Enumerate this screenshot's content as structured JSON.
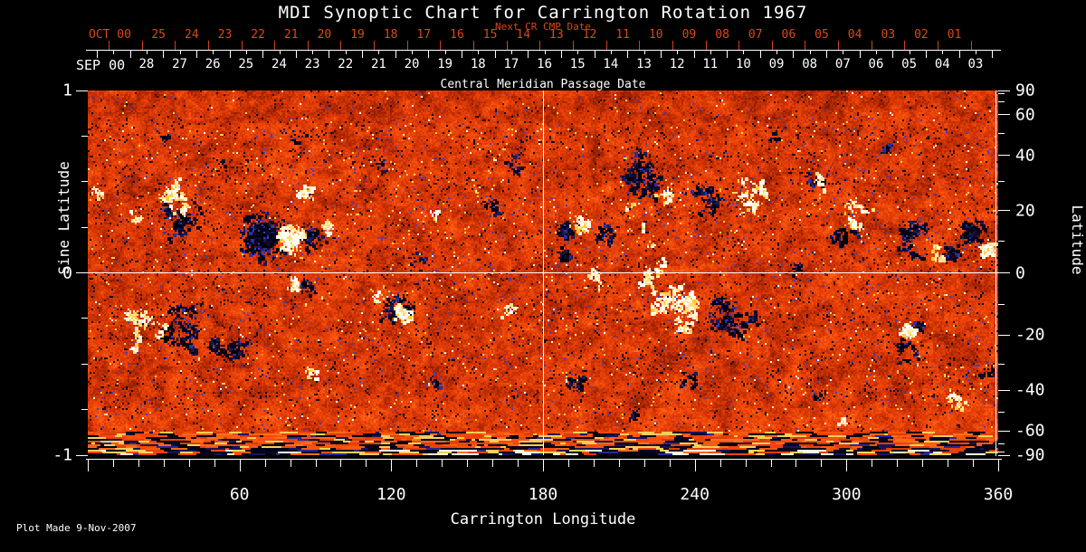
{
  "title": "MDI Synoptic Chart for Carrington Rotation 1967",
  "top_axis": {
    "label": "Next CR CMP Date",
    "month_label": "OCT 00",
    "days": [
      "25",
      "24",
      "23",
      "22",
      "21",
      "20",
      "19",
      "18",
      "17",
      "16",
      "15",
      "14",
      "13",
      "12",
      "11",
      "10",
      "09",
      "08",
      "07",
      "06",
      "05",
      "04",
      "03",
      "02",
      "01"
    ],
    "color": "#d9481c"
  },
  "cmp_axis": {
    "label": "Central Meridian Passage Date",
    "month_label": "SEP 00",
    "days": [
      "28",
      "27",
      "26",
      "25",
      "24",
      "23",
      "22",
      "21",
      "20",
      "19",
      "18",
      "17",
      "16",
      "15",
      "14",
      "13",
      "12",
      "11",
      "10",
      "09",
      "08",
      "07",
      "06",
      "05",
      "04",
      "03"
    ]
  },
  "left_axis": {
    "label": "Sine Latitude",
    "tick_labels": [
      "1",
      "0",
      "-1"
    ],
    "tick_values": [
      1,
      0,
      -1
    ]
  },
  "right_axis": {
    "label": "Latitude",
    "tick_labels": [
      "90",
      "60",
      "40",
      "20",
      "0",
      "-20",
      "-40",
      "-60",
      "-90"
    ],
    "tick_values": [
      90,
      60,
      40,
      20,
      0,
      -20,
      -40,
      -60,
      -90
    ],
    "minor_tick_values": [
      80,
      70,
      50,
      30,
      10,
      -10,
      -30,
      -50,
      -70,
      -80
    ]
  },
  "bottom_axis": {
    "label": "Carrington Longitude",
    "tick_labels": [
      "60",
      "120",
      "180",
      "240",
      "300",
      "360"
    ],
    "tick_values": [
      60,
      120,
      180,
      240,
      300,
      360
    ]
  },
  "footer": "Plot Made  9-Nov-2007",
  "chart_data": {
    "type": "heatmap",
    "title": "MDI Synoptic Chart for Carrington Rotation 1967",
    "xlabel": "Carrington Longitude",
    "ylabel_left": "Sine Latitude",
    "ylabel_right": "Latitude",
    "x_range": [
      0,
      360
    ],
    "y_range_sine_latitude": [
      -1,
      1
    ],
    "crosshairs": {
      "longitude": 180,
      "sine_latitude": 0
    },
    "legend": "none",
    "grid": "crosshair only",
    "colormap": {
      "background_orange": [
        "#681202",
        "#9e2203",
        "#d23405",
        "#f0480a",
        "#fc5c12",
        "#ff8028"
      ],
      "negative_polarity": [
        "#00000e",
        "#0b0b2e",
        "#1a1a52",
        "#2e2ea0",
        "#3b3bc4"
      ],
      "positive_polarity": [
        "#fffff4",
        "#fff3c4",
        "#ffdf7e",
        "#ffc83c"
      ],
      "speckle_navy": "#060622",
      "speckle_blue": "#4040c8",
      "speckle_yellow": "#ffce4a",
      "speckle_white": "#fffdee"
    },
    "polar_band": {
      "sine_latitude_below": -0.88,
      "style": "horizontal navy/black stripes with bright speckled bottom rows"
    },
    "active_regions": {
      "note": "[carrington_longitude_deg, sine_latitude, radius_px, density]",
      "negative": [
        [
          36.9,
          0.29,
          28,
          0.35
        ],
        [
          69.8,
          0.2,
          30,
          0.85
        ],
        [
          88.8,
          0.19,
          16,
          0.6
        ],
        [
          38.7,
          -0.32,
          30,
          0.4
        ],
        [
          55.5,
          -0.44,
          25,
          0.45
        ],
        [
          85.9,
          -0.09,
          9,
          0.65
        ],
        [
          122.8,
          -0.24,
          22,
          0.5
        ],
        [
          219.4,
          0.5,
          25,
          0.55
        ],
        [
          244.5,
          0.4,
          20,
          0.5
        ],
        [
          189.0,
          0.24,
          11,
          0.9
        ],
        [
          188.6,
          0.1,
          9,
          0.85
        ],
        [
          203.3,
          0.21,
          14,
          0.5
        ],
        [
          255.2,
          -0.24,
          28,
          0.5
        ],
        [
          350.0,
          0.22,
          16,
          0.85
        ],
        [
          342.1,
          0.1,
          12,
          0.7
        ],
        [
          326.0,
          0.17,
          25,
          0.4
        ],
        [
          298.9,
          0.23,
          18,
          0.35
        ],
        [
          328.9,
          -0.3,
          9,
          0.8
        ],
        [
          323.2,
          -0.44,
          18,
          0.35
        ],
        [
          355.4,
          -0.55,
          10,
          0.5
        ],
        [
          158.6,
          0.36,
          14,
          0.3
        ],
        [
          167.5,
          0.6,
          12,
          0.3
        ],
        [
          129.9,
          0.08,
          10,
          0.3
        ],
        [
          278.5,
          0.03,
          12,
          0.3
        ],
        [
          194.3,
          -0.59,
          16,
          0.35
        ],
        [
          215.8,
          -0.76,
          12,
          0.3
        ],
        [
          115.6,
          0.6,
          10,
          0.3
        ],
        [
          83.4,
          0.75,
          10,
          0.25
        ],
        [
          29.7,
          0.75,
          9,
          0.25
        ],
        [
          273.1,
          0.75,
          10,
          0.3
        ],
        [
          316.0,
          0.7,
          10,
          0.3
        ],
        [
          237.3,
          -0.59,
          12,
          0.3
        ],
        [
          137.1,
          -0.59,
          10,
          0.3
        ],
        [
          289.2,
          -0.69,
          10,
          0.3
        ],
        [
          217.6,
          0.6,
          18,
          0.45
        ],
        [
          287.0,
          0.5,
          14,
          0.35
        ],
        [
          52.0,
          0.62,
          9,
          0.25
        ]
      ],
      "positive": [
        [
          80.5,
          0.18,
          17,
          0.9
        ],
        [
          94.8,
          0.25,
          8,
          0.85
        ],
        [
          85.5,
          0.44,
          12,
          0.5
        ],
        [
          82.3,
          -0.07,
          9,
          0.8
        ],
        [
          124.6,
          -0.23,
          12,
          0.9
        ],
        [
          36.9,
          0.41,
          25,
          0.35
        ],
        [
          20.8,
          -0.32,
          28,
          0.3
        ],
        [
          194.3,
          0.26,
          14,
          0.5
        ],
        [
          228.3,
          0.43,
          10,
          0.6
        ],
        [
          231.9,
          -0.22,
          30,
          0.55
        ],
        [
          221.2,
          -0.04,
          18,
          0.35
        ],
        [
          201.5,
          -0.04,
          14,
          0.3
        ],
        [
          262.3,
          0.43,
          22,
          0.35
        ],
        [
          305.3,
          0.33,
          18,
          0.35
        ],
        [
          335.7,
          0.11,
          10,
          0.5
        ],
        [
          356.1,
          0.13,
          12,
          0.7
        ],
        [
          323.9,
          -0.33,
          11,
          0.9
        ],
        [
          19.0,
          0.31,
          10,
          0.3
        ],
        [
          3.9,
          0.45,
          10,
          0.4
        ],
        [
          88.8,
          -0.54,
          10,
          0.35
        ],
        [
          137.1,
          0.31,
          10,
          0.3
        ],
        [
          289.2,
          0.5,
          12,
          0.3
        ],
        [
          344.7,
          -0.69,
          14,
          0.35
        ],
        [
          298.2,
          -0.84,
          10,
          0.3
        ],
        [
          115.6,
          -0.14,
          8,
          0.4
        ],
        [
          165.7,
          -0.22,
          10,
          0.3
        ],
        [
          214.0,
          0.36,
          6,
          0.5
        ],
        [
          218.7,
          0.25,
          6,
          0.5
        ],
        [
          222.3,
          0.15,
          6,
          0.5
        ],
        [
          226.5,
          0.06,
          7,
          0.5
        ]
      ]
    }
  }
}
